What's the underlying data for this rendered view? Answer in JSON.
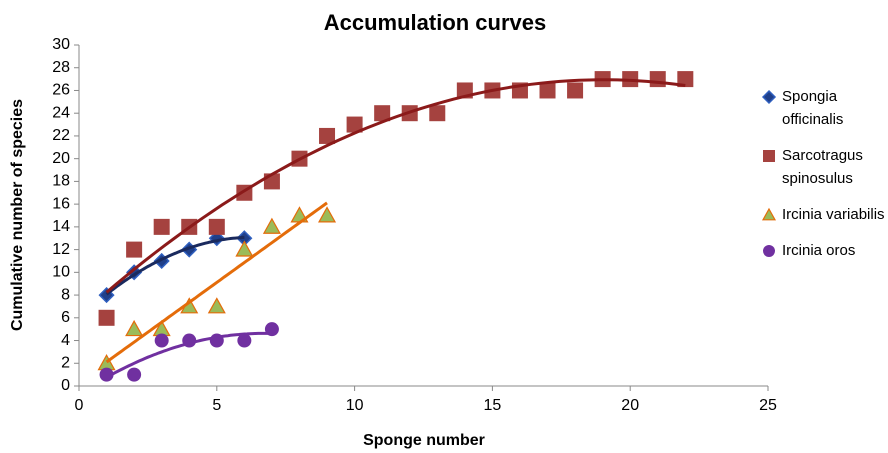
{
  "chart_data": {
    "type": "scatter",
    "title": "Accumulation curves",
    "x_label": "Sponge number",
    "y_label": "Cumulative number of species",
    "xlim": [
      0,
      25
    ],
    "xticks": [
      0,
      5,
      10,
      15,
      20,
      25
    ],
    "ylim": [
      0,
      30
    ],
    "yticks": [
      0,
      2,
      4,
      6,
      8,
      10,
      12,
      14,
      16,
      18,
      20,
      22,
      24,
      26,
      28,
      30
    ],
    "grid": false,
    "legend": "right",
    "series": [
      {
        "name": "Spongia officinalis",
        "marker": "diamond",
        "color": "#1f3f8a",
        "trendline": "poly2",
        "trendline_color": "#1a2a5e",
        "x": [
          1,
          2,
          3,
          4,
          5,
          6
        ],
        "values": [
          8,
          10,
          11,
          12,
          13,
          13
        ]
      },
      {
        "name": "Sarcotragus spinosulus",
        "marker": "square",
        "color": "#a5423f",
        "trendline": "poly2",
        "trendline_color": "#8b1a1a",
        "x": [
          1,
          2,
          3,
          4,
          5,
          6,
          7,
          8,
          9,
          10,
          11,
          12,
          13,
          14,
          15,
          16,
          17,
          18,
          19,
          20,
          21,
          22
        ],
        "values": [
          6,
          12,
          14,
          14,
          14,
          17,
          18,
          20,
          22,
          23,
          24,
          24,
          24,
          26,
          26,
          26,
          26,
          26,
          27,
          27,
          27,
          27
        ]
      },
      {
        "name": "Ircinia variabilis",
        "marker": "triangle",
        "color": "#9bbb59",
        "trendline": "linear",
        "trendline_color": "#e46c0a",
        "x": [
          1,
          2,
          3,
          4,
          5,
          6,
          7,
          8,
          9
        ],
        "values": [
          2,
          5,
          5,
          7,
          7,
          12,
          14,
          15,
          15
        ]
      },
      {
        "name": "Ircinia oros",
        "marker": "circle",
        "color": "#7030a0",
        "trendline": "poly2",
        "trendline_color": "#7030a0",
        "x": [
          1,
          2,
          3,
          4,
          5,
          6,
          7
        ],
        "values": [
          1,
          1,
          4,
          4,
          4,
          4,
          5
        ]
      }
    ]
  }
}
